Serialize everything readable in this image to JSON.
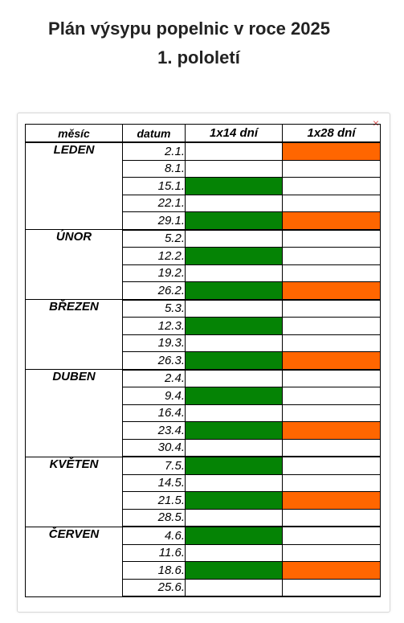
{
  "title_line1": "Plán výsypu popelnic v roce 2025",
  "title_line2": "1. pololetí",
  "close_glyph": "×",
  "colors": {
    "green": "#058305",
    "orange": "#ff6600"
  },
  "table": {
    "headers": [
      "měsíc",
      "datum",
      "1x14 dní",
      "1x28 dní"
    ],
    "months": [
      {
        "name": "LEDEN",
        "rows": [
          {
            "date": "2.1.",
            "w14": false,
            "w28": true
          },
          {
            "date": "8.1.",
            "w14": false,
            "w28": false
          },
          {
            "date": "15.1.",
            "w14": true,
            "w28": false
          },
          {
            "date": "22.1.",
            "w14": false,
            "w28": false
          },
          {
            "date": "29.1.",
            "w14": true,
            "w28": true
          }
        ]
      },
      {
        "name": "ÚNOR",
        "rows": [
          {
            "date": "5.2.",
            "w14": false,
            "w28": false
          },
          {
            "date": "12.2.",
            "w14": true,
            "w28": false
          },
          {
            "date": "19.2.",
            "w14": false,
            "w28": false
          },
          {
            "date": "26.2.",
            "w14": true,
            "w28": true
          }
        ]
      },
      {
        "name": "BŘEZEN",
        "rows": [
          {
            "date": "5.3.",
            "w14": false,
            "w28": false
          },
          {
            "date": "12.3.",
            "w14": true,
            "w28": false
          },
          {
            "date": "19.3.",
            "w14": false,
            "w28": false
          },
          {
            "date": "26.3.",
            "w14": true,
            "w28": true
          }
        ]
      },
      {
        "name": "DUBEN",
        "rows": [
          {
            "date": "2.4.",
            "w14": false,
            "w28": false
          },
          {
            "date": "9.4.",
            "w14": true,
            "w28": false
          },
          {
            "date": "16.4.",
            "w14": false,
            "w28": false
          },
          {
            "date": "23.4.",
            "w14": true,
            "w28": true
          },
          {
            "date": "30.4.",
            "w14": false,
            "w28": false
          }
        ]
      },
      {
        "name": "KVĚTEN",
        "rows": [
          {
            "date": "7.5.",
            "w14": true,
            "w28": false
          },
          {
            "date": "14.5.",
            "w14": false,
            "w28": false
          },
          {
            "date": "21.5.",
            "w14": true,
            "w28": true
          },
          {
            "date": "28.5.",
            "w14": false,
            "w28": false
          }
        ]
      },
      {
        "name": "ČERVEN",
        "rows": [
          {
            "date": "4.6.",
            "w14": true,
            "w28": false
          },
          {
            "date": "11.6.",
            "w14": false,
            "w28": false
          },
          {
            "date": "18.6.",
            "w14": true,
            "w28": true
          },
          {
            "date": "25.6.",
            "w14": false,
            "w28": false
          }
        ]
      }
    ]
  }
}
